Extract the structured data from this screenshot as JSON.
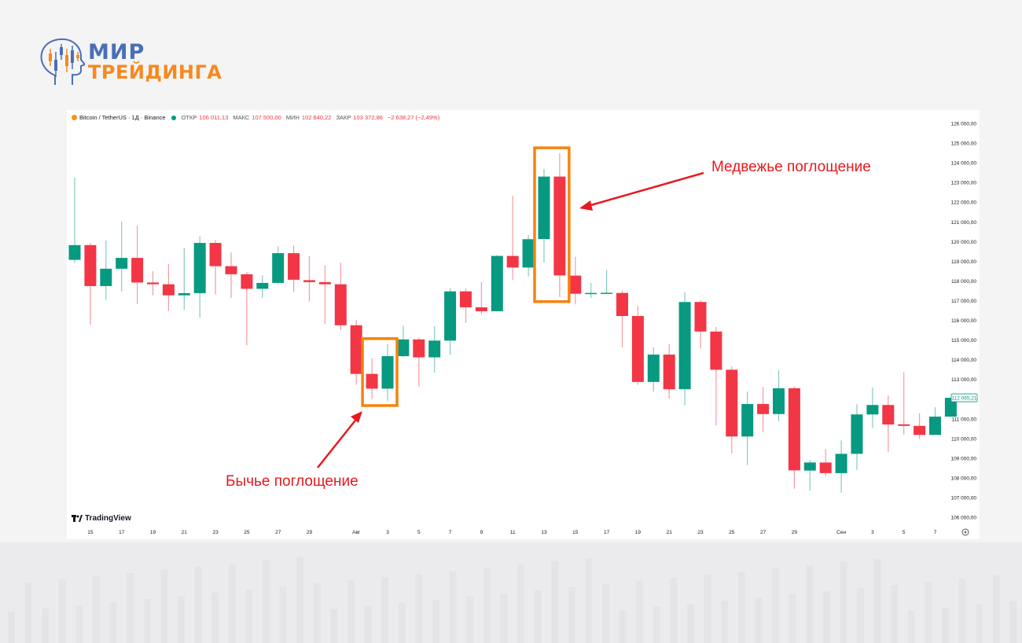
{
  "brand": {
    "line1": "МИР",
    "line2": "ТРЕЙДИНГА"
  },
  "header": {
    "symbol": "Bitcoin / TetherUS · 1Д · Binance",
    "open_label": "ОТКР",
    "open": "106 011,13",
    "high_label": "МАКС",
    "high": "107 500,00",
    "low_label": "МИН",
    "low": "102 840,22",
    "close_label": "ЗАКР",
    "close": "103 372,86",
    "change": "−2 638,27 (−2,49%)"
  },
  "watermark": "TradingView",
  "annotations": {
    "bullish": "Бычье поглощение",
    "bearish": "Медвежье поглощение"
  },
  "colors": {
    "up": "#089981",
    "down": "#f23645",
    "highlight_box": "#f7820f",
    "arrow": "#e8191f"
  },
  "chart_data": {
    "type": "candlestick",
    "ylim": [
      105500,
      126500
    ],
    "y_ticks": [
      "126 000,00",
      "125 000,00",
      "124 000,00",
      "123 000,00",
      "122 000,00",
      "121 000,00",
      "120 000,00",
      "119 000,00",
      "118 000,00",
      "117 000,00",
      "116 000,00",
      "115 000,00",
      "114 000,00",
      "113 000,00",
      "111 000,00",
      "110 000,00",
      "109 000,00",
      "108 000,00",
      "107 000,00",
      "106 000,00"
    ],
    "y_tick_values": [
      126000,
      125000,
      124000,
      123000,
      122000,
      121000,
      120000,
      119000,
      118000,
      117000,
      116000,
      115000,
      114000,
      113000,
      111000,
      110000,
      109000,
      108000,
      107000,
      106000
    ],
    "last_price_label": "112 065,21",
    "last_price": 112065.21,
    "x_ticks": [
      {
        "label": "15",
        "date": "15.07"
      },
      {
        "label": "17",
        "date": "17.07"
      },
      {
        "label": "19",
        "date": "19.07"
      },
      {
        "label": "21",
        "date": "21.07"
      },
      {
        "label": "23",
        "date": "23.07"
      },
      {
        "label": "25",
        "date": "25.07"
      },
      {
        "label": "27",
        "date": "27.07"
      },
      {
        "label": "29",
        "date": "29.07"
      },
      {
        "label": "Авг",
        "date": "01.08"
      },
      {
        "label": "3",
        "date": "03.08"
      },
      {
        "label": "5",
        "date": "05.08"
      },
      {
        "label": "7",
        "date": "07.08"
      },
      {
        "label": "9",
        "date": "09.08"
      },
      {
        "label": "11",
        "date": "11.08"
      },
      {
        "label": "13",
        "date": "13.08"
      },
      {
        "label": "15",
        "date": "15.08"
      },
      {
        "label": "17",
        "date": "17.08"
      },
      {
        "label": "19",
        "date": "19.08"
      },
      {
        "label": "21",
        "date": "21.08"
      },
      {
        "label": "23",
        "date": "23.08"
      },
      {
        "label": "25",
        "date": "25.08"
      },
      {
        "label": "27",
        "date": "27.08"
      },
      {
        "label": "29",
        "date": "29.08"
      },
      {
        "label": "Сен",
        "date": "01.09"
      },
      {
        "label": "3",
        "date": "03.09"
      },
      {
        "label": "5",
        "date": "05.09"
      },
      {
        "label": "7",
        "date": "07.09"
      }
    ],
    "candles": [
      {
        "date": "14.07",
        "o": 119070,
        "h": 123250,
        "l": 118930,
        "c": 119820
      },
      {
        "date": "15.07",
        "o": 119820,
        "h": 119930,
        "l": 115780,
        "c": 117740
      },
      {
        "date": "16.07",
        "o": 117740,
        "h": 120050,
        "l": 117030,
        "c": 118620
      },
      {
        "date": "17.07",
        "o": 118620,
        "h": 121010,
        "l": 117470,
        "c": 119170
      },
      {
        "date": "18.07",
        "o": 119170,
        "h": 120810,
        "l": 116830,
        "c": 117920
      },
      {
        "date": "19.07",
        "o": 117920,
        "h": 118500,
        "l": 117270,
        "c": 117830
      },
      {
        "date": "20.07",
        "o": 117830,
        "h": 118850,
        "l": 116470,
        "c": 117270
      },
      {
        "date": "21.07",
        "o": 117270,
        "h": 119680,
        "l": 116530,
        "c": 117380
      },
      {
        "date": "22.07",
        "o": 117380,
        "h": 120260,
        "l": 116130,
        "c": 119930
      },
      {
        "date": "23.07",
        "o": 119930,
        "h": 120090,
        "l": 117310,
        "c": 118750
      },
      {
        "date": "24.07",
        "o": 118750,
        "h": 119450,
        "l": 117130,
        "c": 118340
      },
      {
        "date": "25.07",
        "o": 118340,
        "h": 118460,
        "l": 114730,
        "c": 117600
      },
      {
        "date": "26.07",
        "o": 117600,
        "h": 118280,
        "l": 117150,
        "c": 117900
      },
      {
        "date": "27.07",
        "o": 117900,
        "h": 119760,
        "l": 117830,
        "c": 119410
      },
      {
        "date": "28.07",
        "o": 119410,
        "h": 119800,
        "l": 117430,
        "c": 118060
      },
      {
        "date": "29.07",
        "o": 118040,
        "h": 119270,
        "l": 116950,
        "c": 117940
      },
      {
        "date": "30.07",
        "o": 117940,
        "h": 118790,
        "l": 115810,
        "c": 117830
      },
      {
        "date": "31.07",
        "o": 117830,
        "h": 118930,
        "l": 115500,
        "c": 115750
      },
      {
        "date": "01.08",
        "o": 115750,
        "h": 116030,
        "l": 112730,
        "c": 113280
      },
      {
        "date": "02.08",
        "o": 113280,
        "h": 114060,
        "l": 112000,
        "c": 112530
      },
      {
        "date": "03.08",
        "o": 112530,
        "h": 114790,
        "l": 111910,
        "c": 114180
      },
      {
        "date": "04.08",
        "o": 114180,
        "h": 115730,
        "l": 114130,
        "c": 115030
      },
      {
        "date": "05.08",
        "o": 115030,
        "h": 115130,
        "l": 112640,
        "c": 114120
      },
      {
        "date": "06.08",
        "o": 114120,
        "h": 115700,
        "l": 113350,
        "c": 114970
      },
      {
        "date": "07.08",
        "o": 114970,
        "h": 117630,
        "l": 114260,
        "c": 117470
      },
      {
        "date": "08.08",
        "o": 117470,
        "h": 117630,
        "l": 115870,
        "c": 116660
      },
      {
        "date": "09.08",
        "o": 116660,
        "h": 117940,
        "l": 116300,
        "c": 116460
      },
      {
        "date": "10.08",
        "o": 116460,
        "h": 119320,
        "l": 116460,
        "c": 119270
      },
      {
        "date": "11.08",
        "o": 119270,
        "h": 122330,
        "l": 118060,
        "c": 118680
      },
      {
        "date": "12.08",
        "o": 118680,
        "h": 120330,
        "l": 118230,
        "c": 120120
      },
      {
        "date": "13.08",
        "o": 120130,
        "h": 123680,
        "l": 118930,
        "c": 123300
      },
      {
        "date": "14.08",
        "o": 123300,
        "h": 124480,
        "l": 117190,
        "c": 118280
      },
      {
        "date": "15.08",
        "o": 118270,
        "h": 119230,
        "l": 116810,
        "c": 117350
      },
      {
        "date": "16.08",
        "o": 117340,
        "h": 117900,
        "l": 117140,
        "c": 117390
      },
      {
        "date": "17.08",
        "o": 117370,
        "h": 118560,
        "l": 117340,
        "c": 117400
      },
      {
        "date": "18.08",
        "o": 117390,
        "h": 117520,
        "l": 114630,
        "c": 116220
      },
      {
        "date": "19.08",
        "o": 116220,
        "h": 116730,
        "l": 112730,
        "c": 112870
      },
      {
        "date": "20.08",
        "o": 112870,
        "h": 114620,
        "l": 112380,
        "c": 114260
      },
      {
        "date": "21.08",
        "o": 114260,
        "h": 114810,
        "l": 112020,
        "c": 112500
      },
      {
        "date": "22.08",
        "o": 112500,
        "h": 117420,
        "l": 111680,
        "c": 116930
      },
      {
        "date": "23.08",
        "o": 116930,
        "h": 117020,
        "l": 114570,
        "c": 115430
      },
      {
        "date": "24.08",
        "o": 115430,
        "h": 115660,
        "l": 110670,
        "c": 113490
      },
      {
        "date": "25.08",
        "o": 113490,
        "h": 113670,
        "l": 109250,
        "c": 110100
      },
      {
        "date": "26.08",
        "o": 110100,
        "h": 112380,
        "l": 108650,
        "c": 111750
      },
      {
        "date": "27.08",
        "o": 111750,
        "h": 112610,
        "l": 110340,
        "c": 111240
      },
      {
        "date": "28.08",
        "o": 111240,
        "h": 113470,
        "l": 110870,
        "c": 112550
      },
      {
        "date": "29.08",
        "o": 112550,
        "h": 112630,
        "l": 107450,
        "c": 108380
      },
      {
        "date": "30.08",
        "o": 108370,
        "h": 108910,
        "l": 107350,
        "c": 108780
      },
      {
        "date": "31.08",
        "o": 108780,
        "h": 109450,
        "l": 108080,
        "c": 108240
      },
      {
        "date": "01.09",
        "o": 108240,
        "h": 109900,
        "l": 107250,
        "c": 109220
      },
      {
        "date": "02.09",
        "o": 109220,
        "h": 111760,
        "l": 108410,
        "c": 111220
      },
      {
        "date": "03.09",
        "o": 111220,
        "h": 112580,
        "l": 110540,
        "c": 111700
      },
      {
        "date": "04.09",
        "o": 111700,
        "h": 112180,
        "l": 109310,
        "c": 110710
      },
      {
        "date": "05.09",
        "o": 110720,
        "h": 113370,
        "l": 110200,
        "c": 110640
      },
      {
        "date": "06.09",
        "o": 110640,
        "h": 111280,
        "l": 109980,
        "c": 110180
      },
      {
        "date": "07.09",
        "o": 110180,
        "h": 111590,
        "l": 110180,
        "c": 111110
      },
      {
        "date": "08.09",
        "o": 111110,
        "h": 112070,
        "l": 111110,
        "c": 112065.21
      }
    ],
    "highlights": [
      {
        "label_key": "bullish",
        "from": "02.08",
        "to": "03.08"
      },
      {
        "label_key": "bearish",
        "from": "13.08",
        "to": "14.08"
      }
    ]
  }
}
